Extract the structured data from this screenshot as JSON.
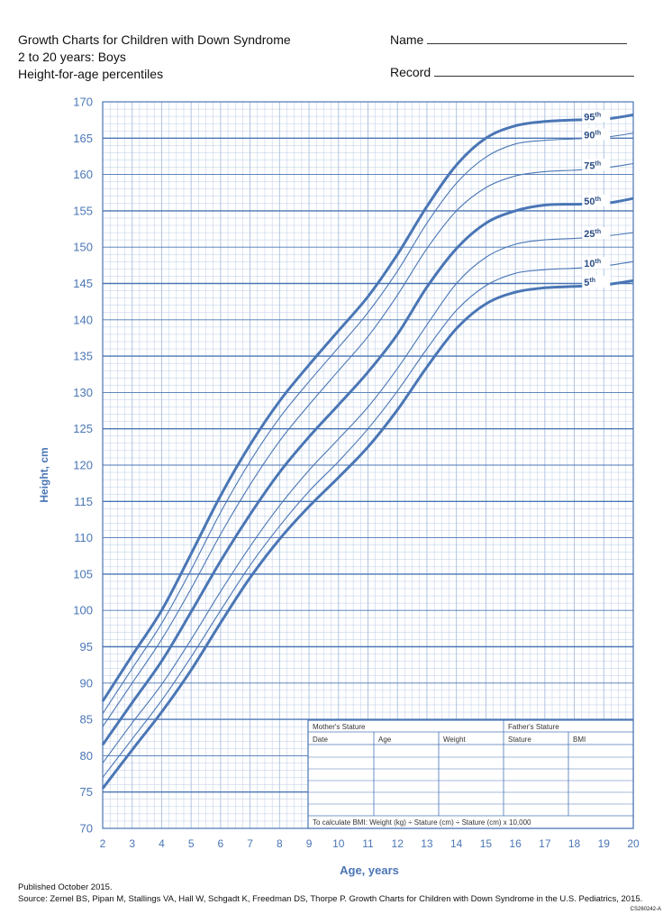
{
  "header": {
    "title": "Growth Charts for Children with Down Syndrome",
    "subtitle": "2 to 20 years: Boys",
    "chart_name": "Height-for-age percentiles",
    "name_label": "Name",
    "record_label": "Record"
  },
  "footer": {
    "published": "Published October 2015.",
    "source": "Source: Zemel BS, Pipan M, Stallings VA, Hall W, Schgadt K, Freedman DS, Thorpe P. Growth Charts for Children with Down Syndrome in the U.S. Pediatrics, 2015.",
    "code": "CS260242-A"
  },
  "record_box": {
    "mothers_stature": "Mother's Stature",
    "fathers_stature": "Father's Stature",
    "columns": [
      "Date",
      "Age",
      "Weight",
      "Stature",
      "BMI"
    ],
    "bmi_note": "To calculate BMI: Weight (kg) ÷ Stature (cm) ÷ Stature (cm) x 10,000"
  },
  "colors": {
    "line": "#4a76b5",
    "grid": "#a9bfdf",
    "grid_major": "#4a76b5"
  },
  "chart_data": {
    "type": "line",
    "title": "Height-for-age percentiles",
    "xlabel": "Age, years",
    "ylabel": "Height, cm",
    "xlim": [
      2,
      20
    ],
    "ylim": [
      70,
      170
    ],
    "x_ticks": [
      2,
      3,
      4,
      5,
      6,
      7,
      8,
      9,
      10,
      11,
      12,
      13,
      14,
      15,
      16,
      17,
      18,
      19,
      20
    ],
    "y_ticks": [
      70,
      75,
      80,
      85,
      90,
      95,
      100,
      105,
      110,
      115,
      120,
      125,
      130,
      135,
      140,
      145,
      150,
      155,
      160,
      165,
      170
    ],
    "grid": true,
    "x": [
      2,
      3,
      4,
      5,
      6,
      7,
      8,
      9,
      10,
      11,
      12,
      13,
      14,
      15,
      16,
      17,
      18,
      19,
      20
    ],
    "series": [
      {
        "name": "95th",
        "label": "95",
        "bold": true,
        "values": [
          87.5,
          93.8,
          100.0,
          107.8,
          115.8,
          122.8,
          128.8,
          133.8,
          138.5,
          143.2,
          149.0,
          155.6,
          161.3,
          165.0,
          166.7,
          167.3,
          167.5,
          167.6,
          168.2
        ]
      },
      {
        "name": "90th",
        "label": "90",
        "bold": false,
        "values": [
          85.8,
          92.0,
          98.2,
          105.6,
          113.5,
          120.5,
          126.5,
          131.5,
          136.2,
          141.0,
          146.7,
          153.3,
          158.8,
          162.4,
          164.2,
          164.7,
          164.9,
          165.1,
          165.7
        ]
      },
      {
        "name": "75th",
        "label": "75",
        "bold": false,
        "values": [
          84.0,
          90.0,
          96.0,
          103.0,
          110.5,
          117.3,
          123.3,
          128.3,
          133.0,
          137.7,
          143.4,
          149.8,
          155.0,
          158.2,
          159.8,
          160.4,
          160.6,
          160.9,
          161.5
        ]
      },
      {
        "name": "50th",
        "label": "50",
        "bold": true,
        "values": [
          81.5,
          87.3,
          93.0,
          99.8,
          106.8,
          113.2,
          119.0,
          123.9,
          128.3,
          132.8,
          138.0,
          144.5,
          149.8,
          153.3,
          155.0,
          155.8,
          155.9,
          156.0,
          156.7
        ]
      },
      {
        "name": "25th",
        "label": "25",
        "bold": false,
        "values": [
          79.0,
          84.5,
          89.8,
          96.0,
          102.6,
          108.8,
          114.4,
          119.3,
          123.6,
          128.0,
          133.3,
          139.3,
          145.0,
          148.6,
          150.4,
          151.0,
          151.2,
          151.5,
          152.0
        ]
      },
      {
        "name": "10th",
        "label": "10",
        "bold": false,
        "values": [
          77.0,
          82.3,
          87.6,
          93.6,
          100.0,
          106.2,
          111.6,
          116.4,
          120.5,
          125.0,
          130.2,
          136.0,
          141.3,
          144.7,
          146.4,
          146.9,
          147.1,
          147.4,
          148.0
        ]
      },
      {
        "name": "5th",
        "label": "5",
        "bold": true,
        "values": [
          75.5,
          80.8,
          86.0,
          91.8,
          98.3,
          104.5,
          109.8,
          114.3,
          118.3,
          122.5,
          127.6,
          133.5,
          138.8,
          142.2,
          143.8,
          144.4,
          144.6,
          144.8,
          145.4
        ]
      }
    ]
  }
}
